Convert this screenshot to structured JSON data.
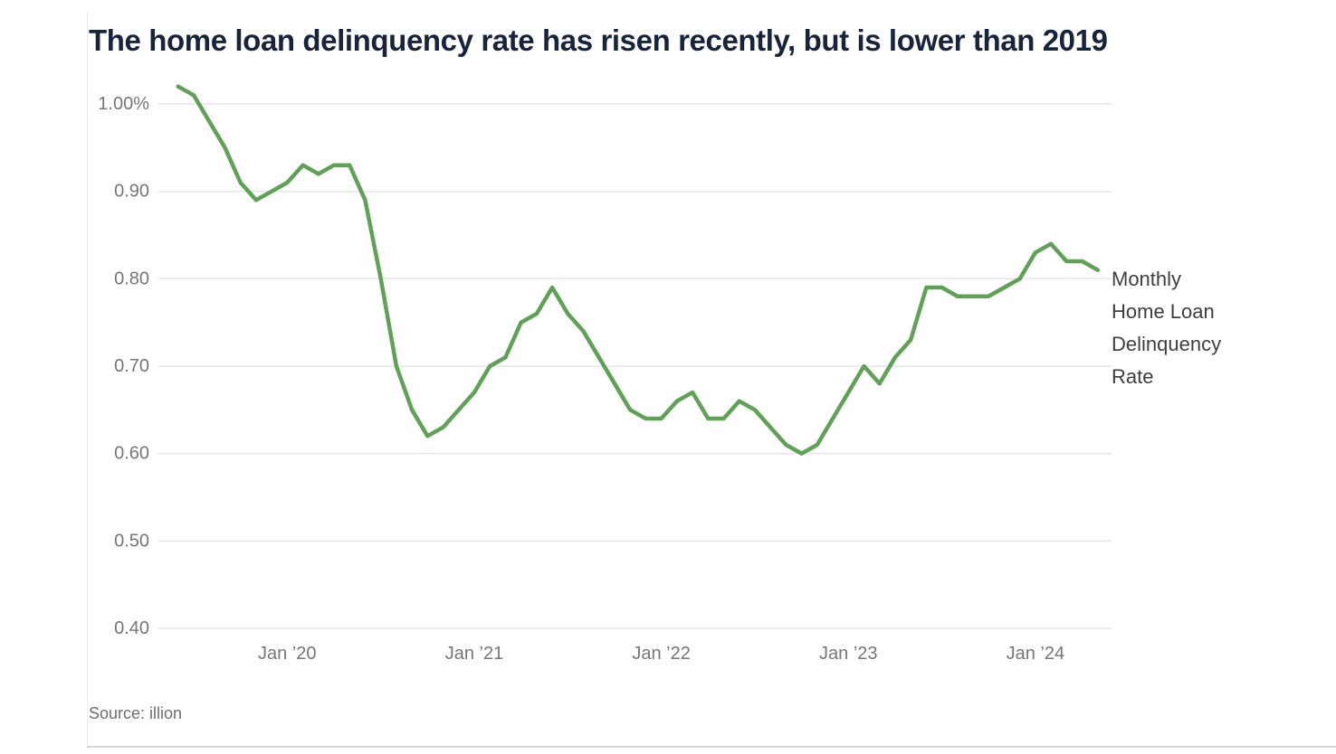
{
  "page": {
    "title": "The home loan delinquency rate has risen recently, but is lower than 2019",
    "source": "Source: illion"
  },
  "legend": {
    "lines": [
      "Monthly",
      "Home Loan",
      "Delinquency",
      "Rate"
    ]
  },
  "colors": {
    "line": "#61a057",
    "title_text": "#18243c",
    "axis_text": "#767676",
    "grid": "#e6e6e6",
    "legend_text": "#3e3e3e",
    "source_text": "#6e6e6e",
    "border": "#ececec",
    "border_strong": "#d4d4d4"
  },
  "chart_data": {
    "type": "line",
    "title": "The home loan delinquency rate has risen recently, but is lower than 2019",
    "unit": "%",
    "grid": true,
    "legend_position": "right",
    "ylim": [
      0.4,
      1.03
    ],
    "y_ticks": [
      1.0,
      0.9,
      0.8,
      0.7,
      0.6,
      0.5,
      0.4
    ],
    "y_tick_labels": [
      "1.00%",
      "0.90",
      "0.80",
      "0.70",
      "0.60",
      "0.50",
      "0.40"
    ],
    "x_tick_labels": [
      "Jan ’20",
      "Jan ’21",
      "Jan ’22",
      "Jan ’23",
      "Jan ’24"
    ],
    "x": [
      "Jun 2019",
      "Jul 2019",
      "Aug 2019",
      "Sep 2019",
      "Oct 2019",
      "Nov 2019",
      "Dec 2019",
      "Jan 2020",
      "Feb 2020",
      "Mar 2020",
      "Apr 2020",
      "May 2020",
      "Jun 2020",
      "Jul 2020",
      "Aug 2020",
      "Sep 2020",
      "Oct 2020",
      "Nov 2020",
      "Dec 2020",
      "Jan 2021",
      "Feb 2021",
      "Mar 2021",
      "Apr 2021",
      "May 2021",
      "Jun 2021",
      "Jul 2021",
      "Aug 2021",
      "Sep 2021",
      "Oct 2021",
      "Nov 2021",
      "Dec 2021",
      "Jan 2022",
      "Feb 2022",
      "Mar 2022",
      "Apr 2022",
      "May 2022",
      "Jun 2022",
      "Jul 2022",
      "Aug 2022",
      "Sep 2022",
      "Oct 2022",
      "Nov 2022",
      "Dec 2022",
      "Jan 2023",
      "Feb 2023",
      "Mar 2023",
      "Apr 2023",
      "May 2023",
      "Jun 2023",
      "Jul 2023",
      "Aug 2023",
      "Sep 2023",
      "Oct 2023",
      "Nov 2023",
      "Dec 2023",
      "Jan 2024",
      "Feb 2024",
      "Mar 2024",
      "Apr 2024",
      "May 2024"
    ],
    "series": [
      {
        "name": "Monthly Home Loan Delinquency Rate",
        "color": "#61a057",
        "values": [
          1.02,
          1.01,
          0.98,
          0.95,
          0.91,
          0.89,
          0.9,
          0.91,
          0.93,
          0.92,
          0.93,
          0.93,
          0.89,
          0.8,
          0.7,
          0.65,
          0.62,
          0.63,
          0.65,
          0.67,
          0.7,
          0.71,
          0.75,
          0.76,
          0.79,
          0.76,
          0.74,
          0.71,
          0.68,
          0.65,
          0.64,
          0.64,
          0.66,
          0.67,
          0.64,
          0.64,
          0.66,
          0.65,
          0.63,
          0.61,
          0.6,
          0.61,
          0.64,
          0.67,
          0.7,
          0.68,
          0.71,
          0.73,
          0.79,
          0.79,
          0.78,
          0.78,
          0.78,
          0.79,
          0.8,
          0.83,
          0.84,
          0.82,
          0.82,
          0.81
        ]
      }
    ]
  }
}
